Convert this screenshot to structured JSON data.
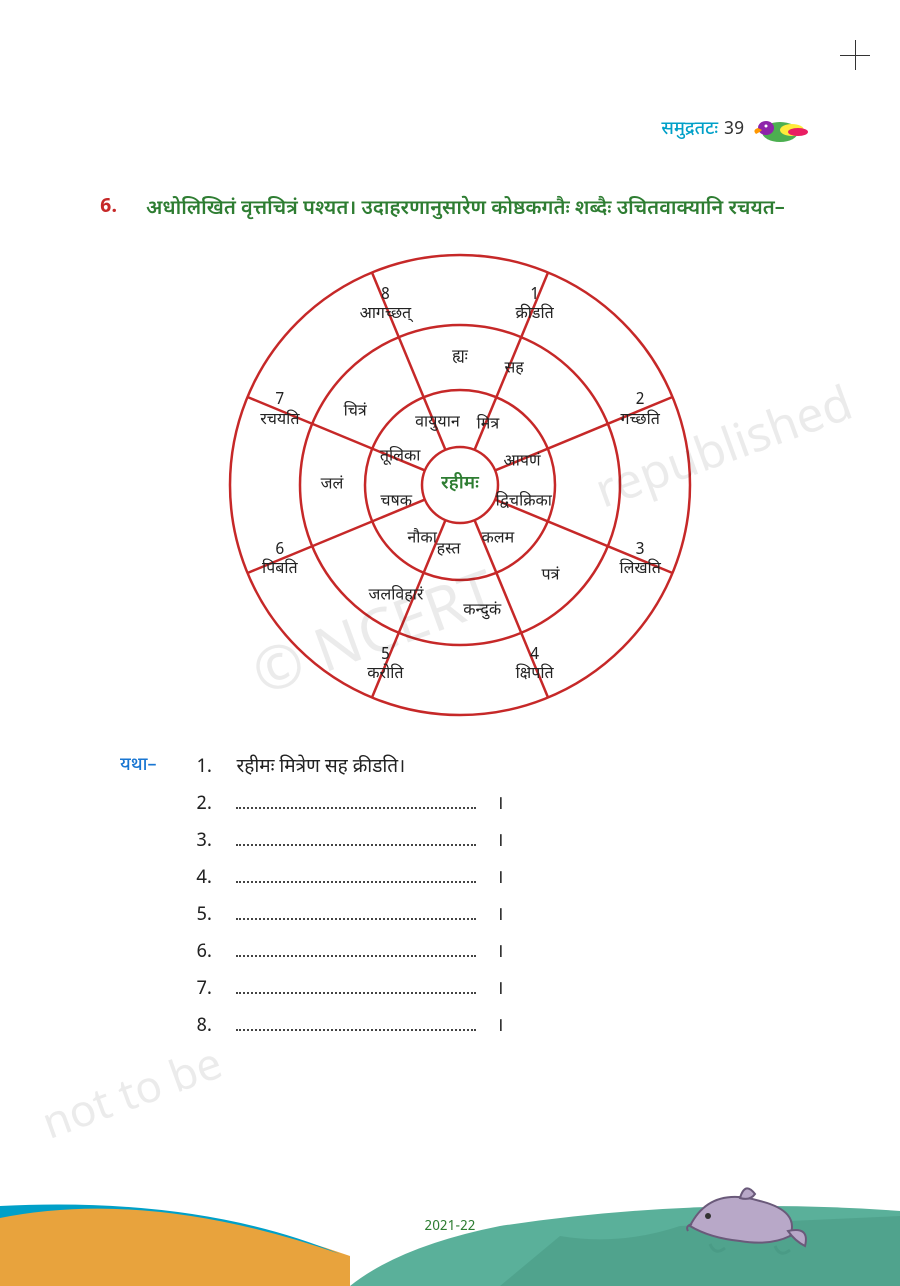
{
  "header": {
    "chapter": "समुद्रतटः",
    "page_number": "39"
  },
  "question": {
    "number": "6.",
    "text": "अधोलिखितं वृत्तचित्रं पश्यत। उदाहरणानुसारेण कोष्ठकगतैः शब्दैः उचितवाक्यानि रचयत–"
  },
  "wheel": {
    "type": "radial-diagram",
    "stroke_color": "#c62828",
    "stroke_width": 2.5,
    "background": "#ffffff",
    "center": "रहीमः",
    "rings": {
      "inner": [
        "मित्र",
        "आपणं",
        "द्विचक्रिका",
        "कलम",
        "हस्त",
        "नौका",
        "चषक",
        "तूलिका",
        "वायुयान"
      ],
      "middle_extra": [
        "सह",
        "पत्रं",
        "कन्दुकं",
        "जलविहारं",
        "जलं",
        "चित्रं",
        "ह्यः"
      ],
      "outer": [
        {
          "n": "1",
          "t": "क्रीडति"
        },
        {
          "n": "2",
          "t": "गच्छति"
        },
        {
          "n": "3",
          "t": "लिखति"
        },
        {
          "n": "4",
          "t": "क्षिपति"
        },
        {
          "n": "5",
          "t": "करोति"
        },
        {
          "n": "6",
          "t": "पिबति"
        },
        {
          "n": "7",
          "t": "रचयति"
        },
        {
          "n": "8",
          "t": "आगच्छत्"
        }
      ]
    }
  },
  "answers": {
    "label": "यथा–",
    "example": "रहीमः मित्रेण सह क्रीडति।",
    "rows": [
      "1.",
      "2.",
      "3.",
      "4.",
      "5.",
      "6.",
      "7.",
      "8."
    ],
    "danda": "।"
  },
  "watermarks": {
    "a": "© NCERT",
    "b": "republished",
    "c": "not to be"
  },
  "footer": {
    "year": "2021-22"
  },
  "colors": {
    "red": "#c62828",
    "green": "#2e7d32",
    "blue": "#1976d2",
    "cyan": "#00a0c8",
    "sand": "#e8a33d",
    "water": "#5ab09a",
    "sky": "#cfe8e3"
  }
}
